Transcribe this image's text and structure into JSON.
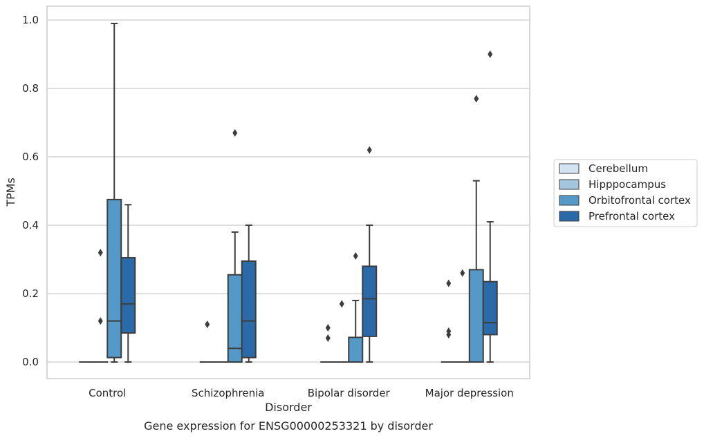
{
  "chart_data": {
    "type": "box",
    "title": "",
    "caption": "Gene expression for ENSG00000253321 by disorder",
    "xlabel": "Disorder",
    "ylabel": "TPMs",
    "ylim": [
      -0.05,
      1.04
    ],
    "yticks": [
      0.0,
      0.2,
      0.4,
      0.6,
      0.8,
      1.0
    ],
    "ytick_labels": [
      "0.0",
      "0.2",
      "0.4",
      "0.6",
      "0.8",
      "1.0"
    ],
    "grid": "horizontal",
    "legend_position": "right",
    "categories": [
      "Control",
      "Schizophrenia",
      "Bipolar disorder",
      "Major depression"
    ],
    "series": [
      {
        "name": "Cerebellum",
        "color": "#d4e3f2",
        "boxes": [
          {
            "whislo": 0,
            "q1": 0,
            "med": 0,
            "q3": 0,
            "whishi": 0,
            "fliers": []
          },
          {
            "whislo": 0,
            "q1": 0,
            "med": 0,
            "q3": 0,
            "whishi": 0,
            "fliers": [
              0.11
            ]
          },
          {
            "whislo": 0,
            "q1": 0,
            "med": 0,
            "q3": 0,
            "whishi": 0,
            "fliers": [
              0.07,
              0.1
            ]
          },
          {
            "whislo": 0,
            "q1": 0,
            "med": 0,
            "q3": 0,
            "whishi": 0,
            "fliers": [
              0.08,
              0.09,
              0.23
            ]
          }
        ]
      },
      {
        "name": "Hipppocampus",
        "color": "#a3c6de",
        "boxes": [
          {
            "whislo": 0,
            "q1": 0,
            "med": 0,
            "q3": 0,
            "whishi": 0,
            "fliers": [
              0.12,
              0.32
            ]
          },
          {
            "whislo": 0,
            "q1": 0,
            "med": 0,
            "q3": 0,
            "whishi": 0,
            "fliers": []
          },
          {
            "whislo": 0,
            "q1": 0,
            "med": 0,
            "q3": 0,
            "whishi": 0,
            "fliers": [
              0.17
            ]
          },
          {
            "whislo": 0,
            "q1": 0,
            "med": 0,
            "q3": 0,
            "whishi": 0,
            "fliers": [
              0.26
            ]
          }
        ]
      },
      {
        "name": "Orbitofrontal cortex",
        "color": "#5599c8",
        "boxes": [
          {
            "whislo": 0,
            "q1": 0.013,
            "med": 0.12,
            "q3": 0.475,
            "whishi": 0.99,
            "fliers": []
          },
          {
            "whislo": 0,
            "q1": 0,
            "med": 0.04,
            "q3": 0.255,
            "whishi": 0.38,
            "fliers": [
              0.67
            ]
          },
          {
            "whislo": 0,
            "q1": 0,
            "med": 0,
            "q3": 0.072,
            "whishi": 0.18,
            "fliers": [
              0.31
            ]
          },
          {
            "whislo": 0,
            "q1": 0,
            "med": 0,
            "q3": 0.27,
            "whishi": 0.53,
            "fliers": [
              0.77
            ]
          }
        ]
      },
      {
        "name": "Prefrontal cortex",
        "color": "#2b6aa9",
        "boxes": [
          {
            "whislo": 0,
            "q1": 0.085,
            "med": 0.17,
            "q3": 0.305,
            "whishi": 0.46,
            "fliers": []
          },
          {
            "whislo": 0,
            "q1": 0.013,
            "med": 0.12,
            "q3": 0.295,
            "whishi": 0.4,
            "fliers": []
          },
          {
            "whislo": 0,
            "q1": 0.075,
            "med": 0.185,
            "q3": 0.28,
            "whishi": 0.4,
            "fliers": [
              0.62
            ]
          },
          {
            "whislo": 0,
            "q1": 0.08,
            "med": 0.115,
            "q3": 0.235,
            "whishi": 0.41,
            "fliers": [
              0.9
            ]
          }
        ]
      }
    ]
  }
}
